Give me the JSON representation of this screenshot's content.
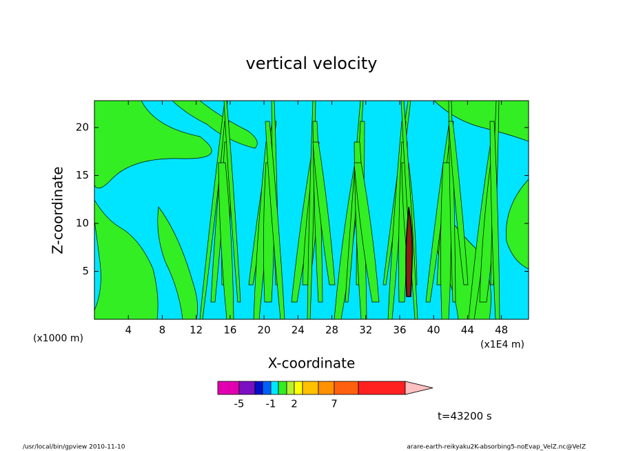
{
  "chart_data": {
    "type": "contour",
    "title": "vertical velocity",
    "xlabel": "X-coordinate",
    "ylabel": "Z-coordinate",
    "x_unit_label": "(x1000 m)",
    "x_scale_label": "(x1E4 m)",
    "xlim": [
      0,
      51.2
    ],
    "ylim": [
      0,
      22.8
    ],
    "xticks": [
      4,
      8,
      12,
      16,
      20,
      24,
      28,
      32,
      36,
      40,
      44,
      48
    ],
    "yticks": [
      5,
      10,
      15,
      20
    ],
    "background_color": "#00e5ff",
    "field_color": "#33ee22",
    "colorbar": {
      "colors": [
        "#e000b0",
        "#7a10c0",
        "#0010c8",
        "#0060ff",
        "#00e5ff",
        "#33ee22",
        "#b8f030",
        "#ffff00",
        "#ffc000",
        "#ff9000",
        "#ff6010",
        "#ff2020",
        "#ff7f78",
        "#ffc0c0"
      ],
      "ticks": [
        -5,
        -1,
        2,
        7
      ]
    },
    "annotation": "t=43200 s",
    "footer_left": "/usr/local/bin/gpview  2010-11-10",
    "footer_right": "arare-earth-reikyaku2K-absorbing5-noEvap_VelZ.nc@VelZ"
  }
}
